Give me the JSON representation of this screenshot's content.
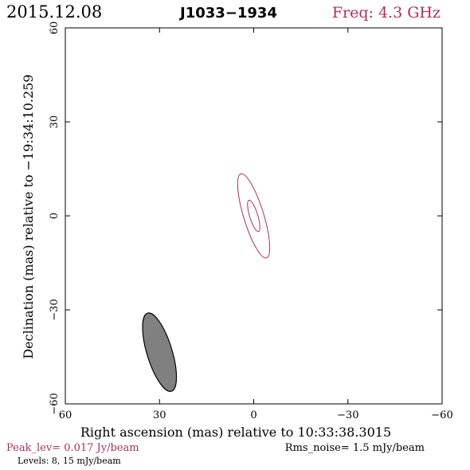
{
  "header": {
    "date": "2015.12.08",
    "source": "J1033−1934",
    "freq": "Freq: 4.3 GHz"
  },
  "colors": {
    "accent": "#b0305a",
    "frame": "#000000",
    "beam_fill": "#808080"
  },
  "footer": {
    "peak": "Peak_lev=  0.017 Jy/beam",
    "rms": "Rms_noise=  1.5 mJy/beam",
    "levels": "Levels:   8,  15 mJy/beam"
  },
  "chart_data": {
    "type": "contour",
    "xlabel": "Right ascension (mas) relative to 10:33:38.3015",
    "ylabel": "Declination (mas) relative to −19:34:10.259",
    "xlim": [
      60,
      -60
    ],
    "ylim": [
      -60,
      60
    ],
    "x_ticks": [
      60,
      30,
      0,
      -30,
      -60
    ],
    "y_ticks": [
      -60,
      -30,
      0,
      30,
      60
    ],
    "x_tick_labels": [
      "60",
      "30",
      "0",
      "−30",
      "−60"
    ],
    "y_tick_labels": [
      "−60",
      "−30",
      "0",
      "30",
      "60"
    ],
    "contour_levels_mjy": [
      8,
      15
    ],
    "contours": [
      {
        "level": 8,
        "center": [
          0,
          0
        ],
        "major_axis_mas": 28,
        "minor_axis_mas": 6.4,
        "pa_deg": -17
      },
      {
        "level": 15,
        "center": [
          0,
          0
        ],
        "major_axis_mas": 10.4,
        "minor_axis_mas": 2.6,
        "pa_deg": -17
      }
    ],
    "beam": {
      "center": [
        30,
        -43.5
      ],
      "major_axis_mas": 26,
      "minor_axis_mas": 8,
      "pa_deg": -17
    }
  }
}
